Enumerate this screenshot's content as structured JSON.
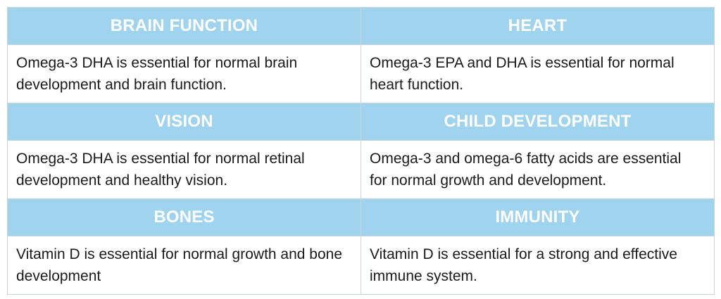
{
  "sections": [
    {
      "left": {
        "heading": "BRAIN FUNCTION",
        "text": "Omega-3 DHA is essential for normal brain development and brain function."
      },
      "right": {
        "heading": "HEART",
        "text": "Omega-3 EPA and DHA is essential for normal heart function."
      }
    },
    {
      "left": {
        "heading": "VISION",
        "text": "Omega-3 DHA is essential for normal retinal development and healthy vision."
      },
      "right": {
        "heading": "CHILD DEVELOPMENT",
        "text": "Omega-3 and omega-6 fatty acids are essential for normal growth and development."
      }
    },
    {
      "left": {
        "heading": "BONES",
        "text": "Vitamin D is essential for normal growth and bone development"
      },
      "right": {
        "heading": "IMMUNITY",
        "text": "Vitamin D is essential for a strong and effective immune system."
      }
    }
  ],
  "colors": {
    "header_bg": "#9fd3ee",
    "header_text": "#ffffff",
    "body_text": "#1a1a1a",
    "border": "#c9d3da"
  }
}
